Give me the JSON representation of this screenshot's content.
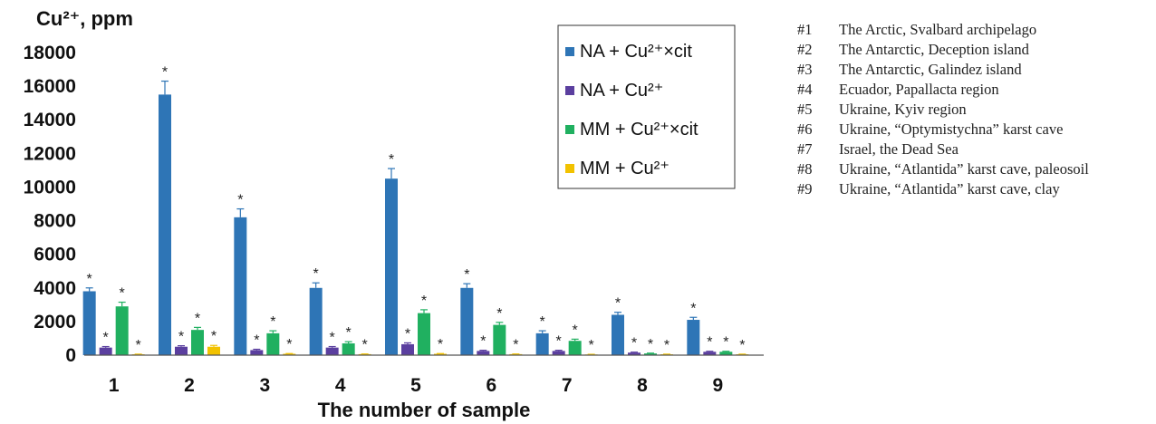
{
  "chart_data": {
    "type": "bar",
    "ylabel": "Cu²⁺, ppm",
    "xlabel": "The number of sample",
    "ylim": [
      0,
      18000
    ],
    "yticks": [
      0,
      2000,
      4000,
      6000,
      8000,
      10000,
      12000,
      14000,
      16000,
      18000
    ],
    "categories": [
      "1",
      "2",
      "3",
      "4",
      "5",
      "6",
      "7",
      "8",
      "9"
    ],
    "grid": false,
    "legend_position": "top-right",
    "series": [
      {
        "name": "NA + Cu²⁺×cit",
        "color": "#2e75b6",
        "values": [
          3800,
          15500,
          8200,
          4000,
          10500,
          4000,
          1300,
          2400,
          2100
        ],
        "errors": [
          200,
          800,
          500,
          300,
          600,
          250,
          150,
          150,
          150
        ]
      },
      {
        "name": "NA + Cu²⁺",
        "color": "#5b3f9f",
        "values": [
          450,
          500,
          300,
          450,
          650,
          250,
          250,
          150,
          200
        ],
        "errors": [
          60,
          60,
          50,
          60,
          80,
          40,
          40,
          30,
          30
        ]
      },
      {
        "name": "MM + Cu²⁺×cit",
        "color": "#20b060",
        "values": [
          2900,
          1500,
          1300,
          700,
          2500,
          1800,
          850,
          100,
          200
        ],
        "errors": [
          250,
          150,
          150,
          100,
          200,
          150,
          100,
          20,
          30
        ]
      },
      {
        "name": "MM + Cu²⁺",
        "color": "#f2c200",
        "values": [
          50,
          500,
          80,
          60,
          80,
          60,
          40,
          50,
          50
        ],
        "errors": [
          10,
          80,
          15,
          10,
          15,
          10,
          10,
          10,
          10
        ]
      }
    ]
  },
  "sites": [
    {
      "num": "#1",
      "text": "The Arctic, Svalbard archipelago"
    },
    {
      "num": "#2",
      "text": "The Antarctic, Deception island"
    },
    {
      "num": "#3",
      "text": "The Antarctic, Galindez island"
    },
    {
      "num": "#4",
      "text": "Ecuador, Papallacta region"
    },
    {
      "num": "#5",
      "text": "Ukraine, Kyiv region"
    },
    {
      "num": "#6",
      "text": "Ukraine, “Optymistychna” karst cave"
    },
    {
      "num": "#7",
      "text": "Israel, the Dead Sea"
    },
    {
      "num": "#8",
      "text": "Ukraine, “Atlantida” karst cave, paleosoil"
    },
    {
      "num": "#9",
      "text": "Ukraine, “Atlantida” karst cave, clay"
    }
  ]
}
